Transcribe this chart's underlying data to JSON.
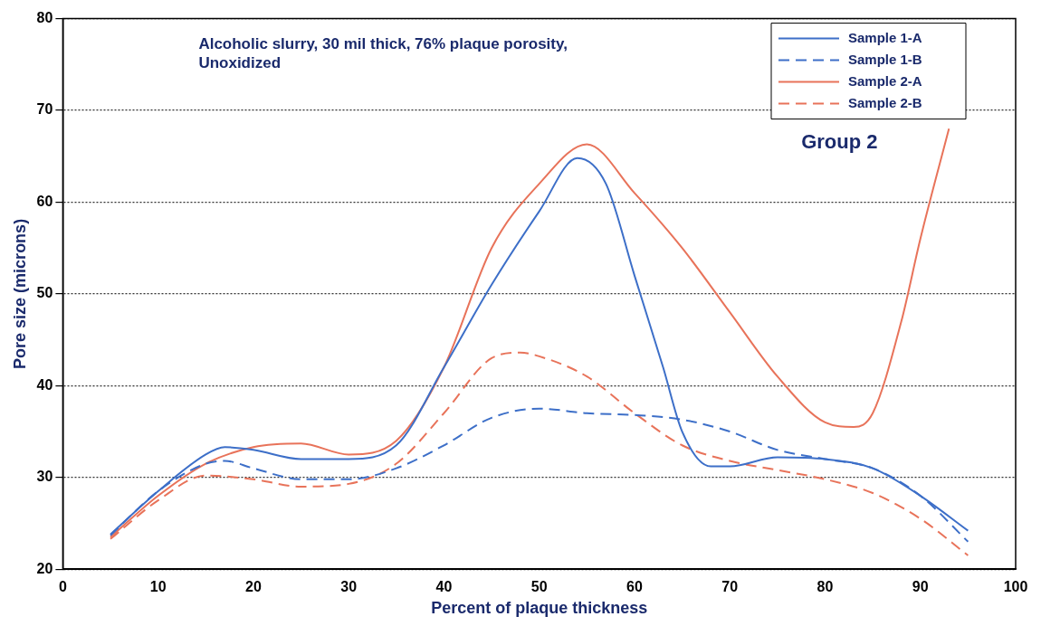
{
  "chart_data": {
    "type": "line",
    "title": "Alcoholic slurry, 30 mil thick, 76% plaque porosity, Unoxidized",
    "xlabel": "Percent of plaque thickness",
    "ylabel": "Pore size (microns)",
    "annotations": [
      "Group 2"
    ],
    "xlim": [
      0,
      100
    ],
    "xticks": [
      0,
      10,
      20,
      30,
      40,
      50,
      60,
      70,
      80,
      90,
      100
    ],
    "ylim": [
      20,
      80
    ],
    "yticks": [
      20,
      30,
      40,
      50,
      60,
      70,
      80
    ],
    "grid": "y",
    "legend": "top right",
    "marker": "none",
    "series": [
      {
        "name": "Sample 1-A",
        "color": "#3d6fc8",
        "line_style": "solid",
        "x": [
          5,
          10,
          15,
          17,
          20,
          25,
          30,
          35,
          40,
          45,
          50,
          54,
          57,
          60,
          63,
          65,
          68,
          70,
          75,
          80,
          85,
          90,
          95
        ],
        "values": [
          23.8,
          28.5,
          32.5,
          33.3,
          33,
          32,
          32,
          33.5,
          42,
          51,
          59,
          64.8,
          62,
          52,
          42,
          35,
          31.2,
          31.2,
          32.2,
          32,
          31,
          28,
          24.2
        ]
      },
      {
        "name": "Sample 1-B",
        "color": "#3d6fc8",
        "line_style": "dashed",
        "x": [
          5,
          10,
          15,
          17,
          20,
          25,
          30,
          35,
          40,
          45,
          50,
          55,
          60,
          65,
          70,
          75,
          80,
          85,
          90,
          95
        ],
        "values": [
          23.7,
          28.5,
          31.5,
          31.8,
          31,
          29.8,
          29.8,
          31,
          33.5,
          36.5,
          37.5,
          37,
          36.8,
          36.3,
          35,
          33,
          32,
          31,
          28,
          23
        ]
      },
      {
        "name": "Sample 2-A",
        "color": "#e8735a",
        "line_style": "solid",
        "x": [
          5,
          10,
          15,
          20,
          25,
          30,
          35,
          40,
          45,
          50,
          55,
          60,
          65,
          70,
          75,
          80,
          83,
          85,
          88,
          90,
          93
        ],
        "values": [
          23.5,
          28,
          31.5,
          33.3,
          33.7,
          32.5,
          34,
          42,
          55,
          62,
          66.3,
          61,
          55,
          48,
          41,
          36,
          35.5,
          37,
          47,
          56,
          68
        ]
      },
      {
        "name": "Sample 2-B",
        "color": "#e8735a",
        "line_style": "dashed",
        "x": [
          5,
          10,
          15,
          20,
          25,
          30,
          35,
          40,
          45,
          48,
          50,
          55,
          60,
          65,
          70,
          75,
          80,
          85,
          90,
          95
        ],
        "values": [
          23.3,
          27.5,
          30.2,
          29.8,
          29,
          29.3,
          31.5,
          37,
          43,
          43.6,
          43.2,
          41,
          37,
          33.5,
          31.8,
          30.8,
          29.8,
          28.3,
          25.5,
          21.5
        ]
      }
    ]
  }
}
